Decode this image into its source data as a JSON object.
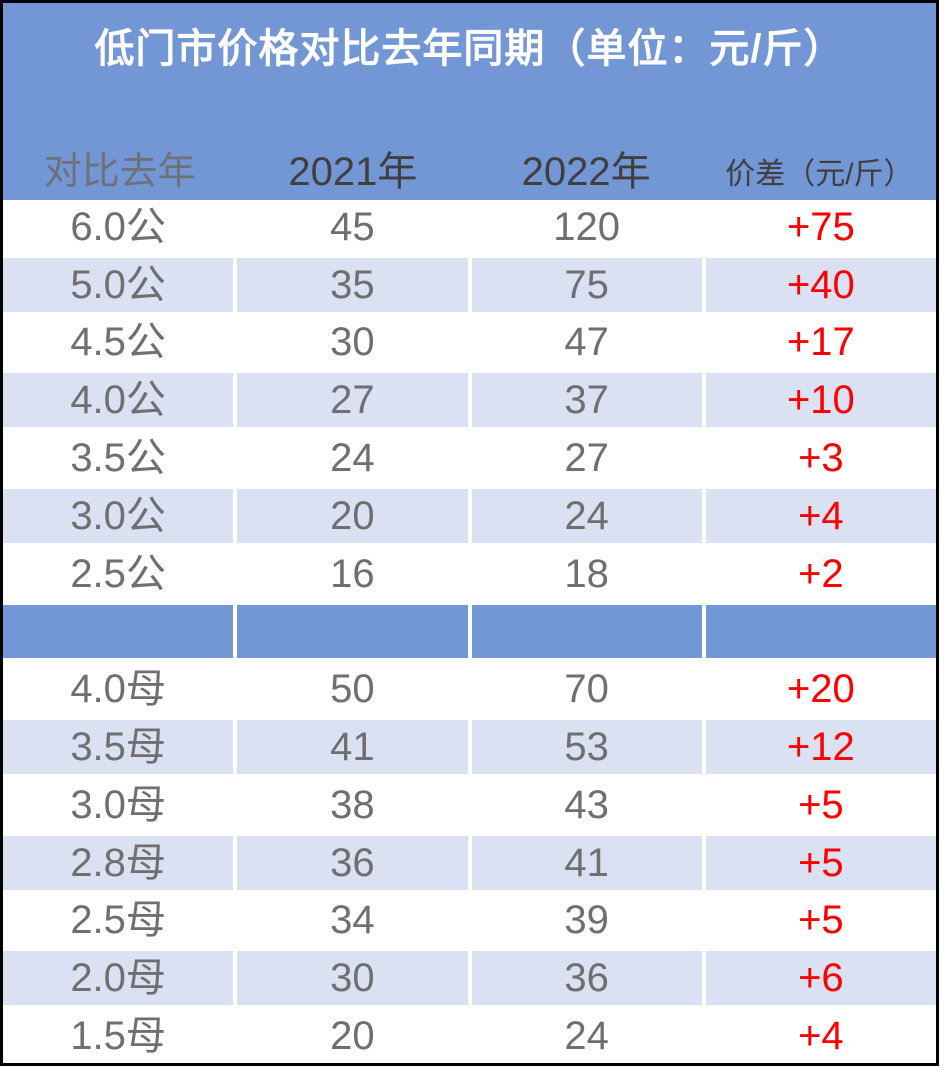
{
  "title": "低门市价格对比去年同期（单位：元/斤）",
  "colors": {
    "header_blue": "#7396d5",
    "band_blue": "#d9e1f2",
    "diff_red": "#ff0000",
    "header_text_dark": "#3f3f3f",
    "data_text_gray": "#6f6f6f",
    "compare_label_gray": "#6d7179",
    "title_white": "#ffffff",
    "border_black": "#000000"
  },
  "chart_data": {
    "type": "table",
    "title": "低门市价格对比去年同期（单位：元/斤）",
    "columns": [
      "对比去年",
      "2021年",
      "2022年",
      "价差（元/斤）"
    ],
    "rows": [
      {
        "label": "6.0公",
        "y2021": "45",
        "y2022": "120",
        "diff": "+75",
        "band": false
      },
      {
        "label": "5.0公",
        "y2021": "35",
        "y2022": "75",
        "diff": "+40",
        "band": true
      },
      {
        "label": "4.5公",
        "y2021": "30",
        "y2022": "47",
        "diff": "+17",
        "band": false
      },
      {
        "label": "4.0公",
        "y2021": "27",
        "y2022": "37",
        "diff": "+10",
        "band": true
      },
      {
        "label": "3.5公",
        "y2021": "24",
        "y2022": "27",
        "diff": "+3",
        "band": false
      },
      {
        "label": "3.0公",
        "y2021": "20",
        "y2022": "24",
        "diff": "+4",
        "band": true
      },
      {
        "label": "2.5公",
        "y2021": "16",
        "y2022": "18",
        "diff": "+2",
        "band": false
      },
      {
        "separator": true
      },
      {
        "label": "4.0母",
        "y2021": "50",
        "y2022": "70",
        "diff": "+20",
        "band": false
      },
      {
        "label": "3.5母",
        "y2021": "41",
        "y2022": "53",
        "diff": "+12",
        "band": true
      },
      {
        "label": "3.0母",
        "y2021": "38",
        "y2022": "43",
        "diff": "+5",
        "band": false
      },
      {
        "label": "2.8母",
        "y2021": "36",
        "y2022": "41",
        "diff": "+5",
        "band": true
      },
      {
        "label": "2.5母",
        "y2021": "34",
        "y2022": "39",
        "diff": "+5",
        "band": false
      },
      {
        "label": "2.0母",
        "y2021": "30",
        "y2022": "36",
        "diff": "+6",
        "band": true
      },
      {
        "label": "1.5母",
        "y2021": "20",
        "y2022": "24",
        "diff": "+4",
        "band": false
      }
    ]
  }
}
